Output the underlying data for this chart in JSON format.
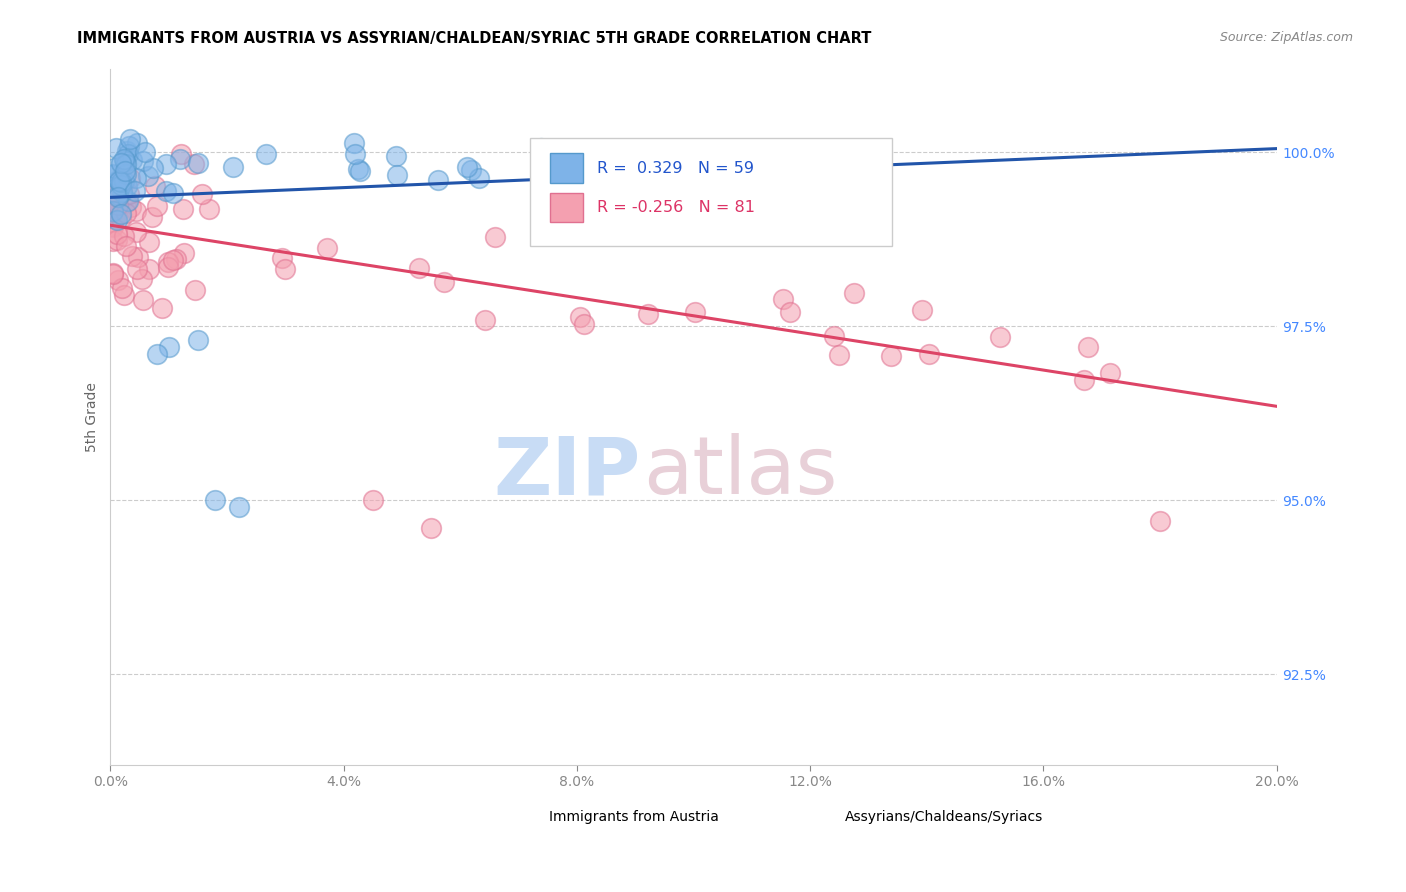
{
  "title": "IMMIGRANTS FROM AUSTRIA VS ASSYRIAN/CHALDEAN/SYRIAC 5TH GRADE CORRELATION CHART",
  "source": "Source: ZipAtlas.com",
  "ylabel_left": "5th Grade",
  "right_yticks": [
    92.5,
    95.0,
    97.5,
    100.0
  ],
  "xlim": [
    0.0,
    20.0
  ],
  "ylim": [
    91.2,
    101.2
  ],
  "blue_R": 0.329,
  "blue_N": 59,
  "pink_R": -0.256,
  "pink_N": 81,
  "blue_color": "#7EB3E8",
  "pink_color": "#F4A0B0",
  "blue_edge_color": "#5599CC",
  "pink_edge_color": "#E07090",
  "blue_line_color": "#2255AA",
  "pink_line_color": "#DD4466",
  "legend_blue_label": "Immigrants from Austria",
  "legend_pink_label": "Assyrians/Chaldeans/Syriacs",
  "watermark_zip": "ZIP",
  "watermark_atlas": "atlas",
  "grid_color": "#CCCCCC",
  "blue_trend_x0": 0.0,
  "blue_trend_y0": 99.35,
  "blue_trend_x1": 20.0,
  "blue_trend_y1": 100.05,
  "pink_trend_x0": 0.0,
  "pink_trend_y0": 98.95,
  "pink_trend_x1": 20.0,
  "pink_trend_y1": 96.35
}
